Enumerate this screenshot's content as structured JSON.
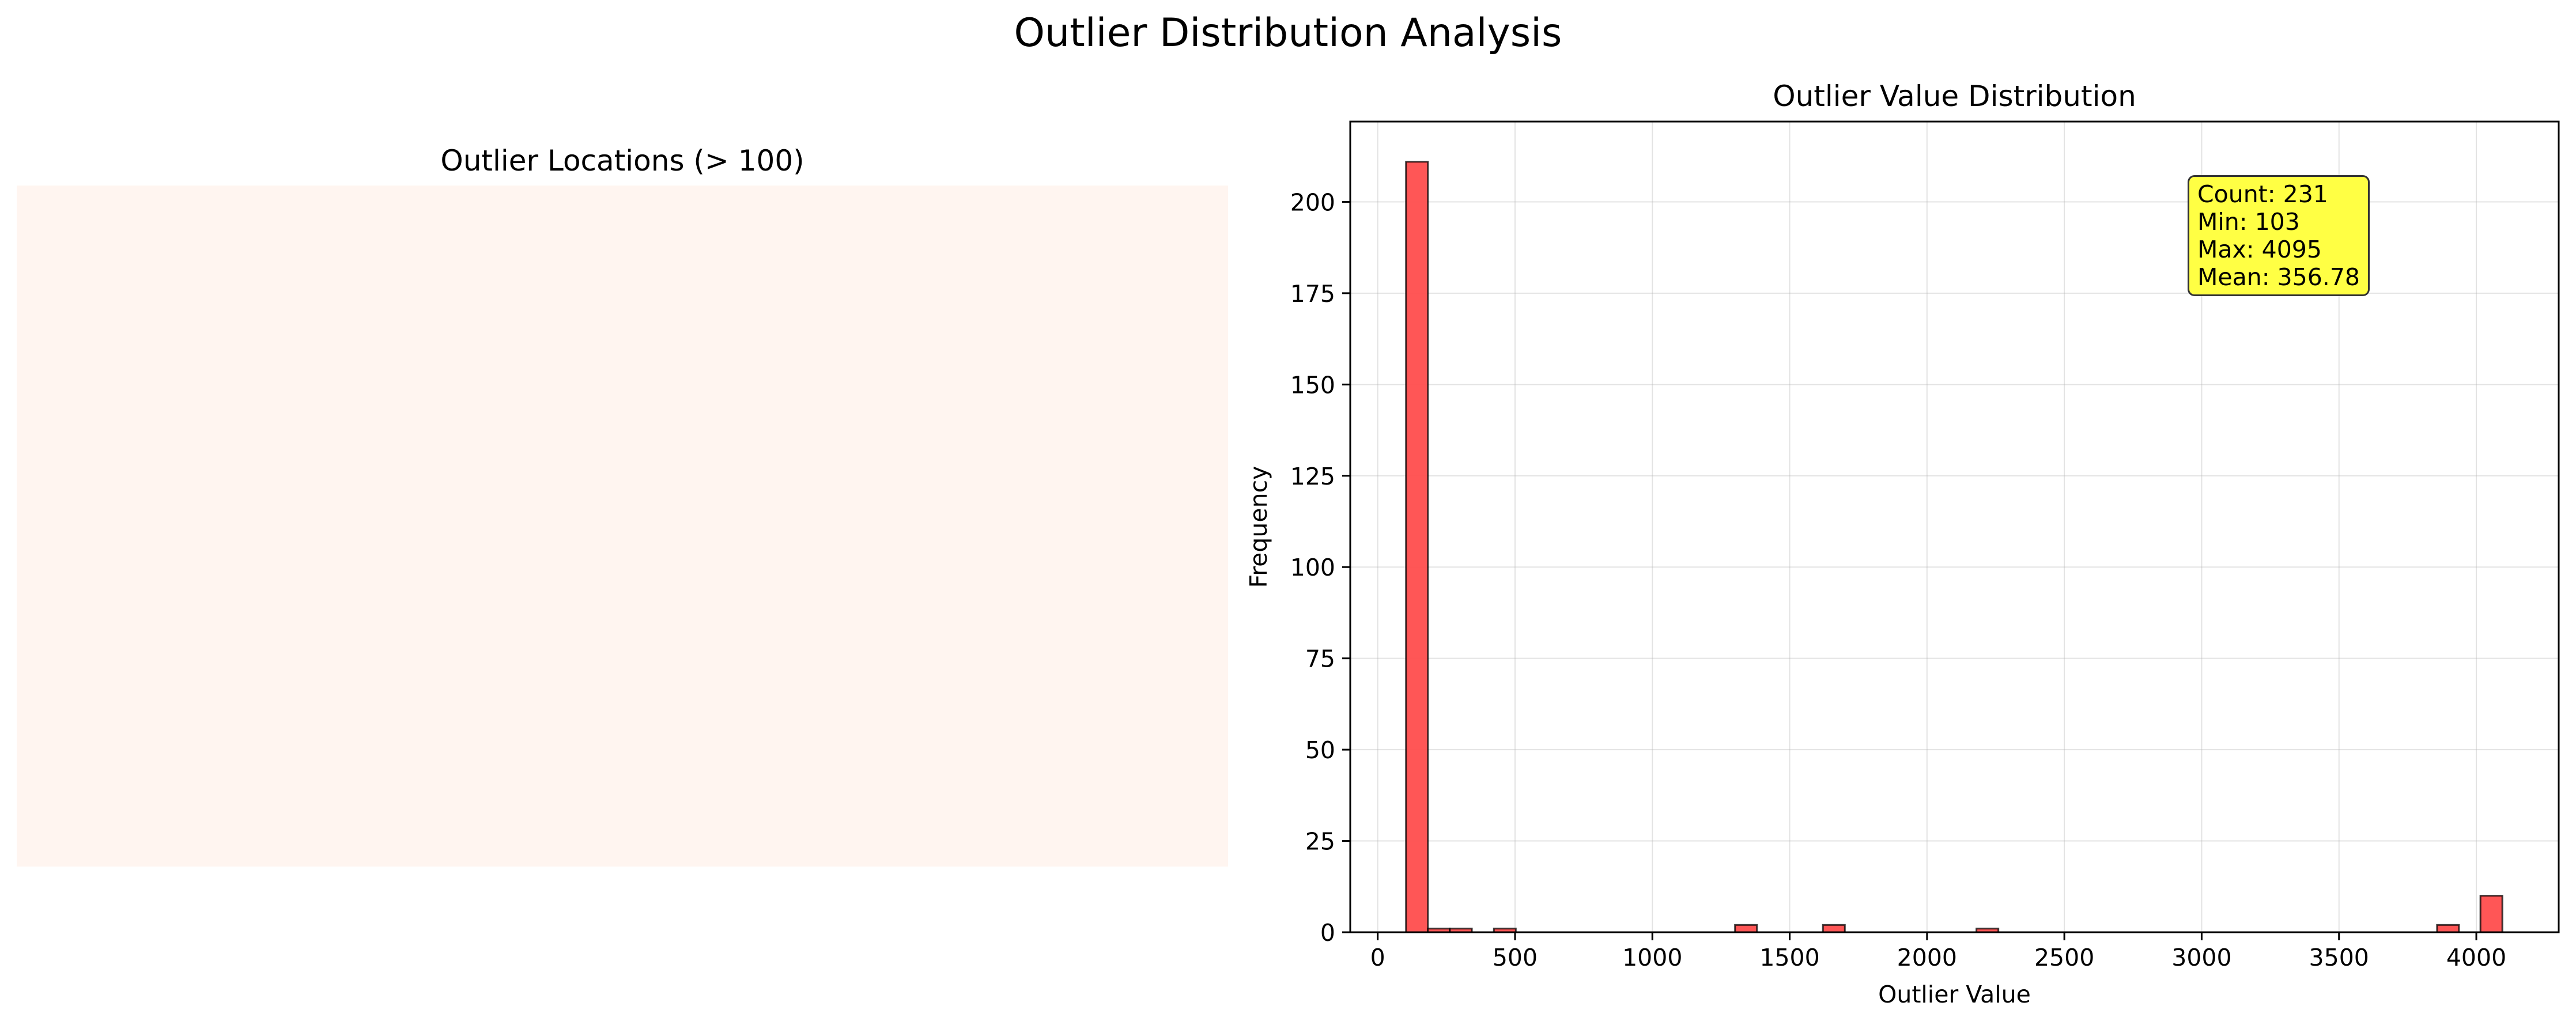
{
  "suptitle": "Outlier Distribution Analysis",
  "left_panel": {
    "title": "Outlier Locations (> 100)",
    "fill_color": "#fff5f0"
  },
  "chart_data": {
    "type": "bar",
    "title": "Outlier Value Distribution",
    "xlabel": "Outlier Value",
    "ylabel": "Frequency",
    "xlim": [
      -100,
      4300
    ],
    "ylim": [
      0,
      222
    ],
    "xticks": [
      0,
      500,
      1000,
      1500,
      2000,
      2500,
      3000,
      3500,
      4000
    ],
    "yticks": [
      0,
      25,
      50,
      75,
      100,
      125,
      150,
      175,
      200
    ],
    "grid": true,
    "bar_color": "#ff4d4d",
    "edge_color": "#000000",
    "bin_width": 79.84,
    "bins": [
      {
        "start": 103,
        "count": 211
      },
      {
        "start": 183,
        "count": 1
      },
      {
        "start": 263,
        "count": 1
      },
      {
        "start": 423,
        "count": 1
      },
      {
        "start": 1301,
        "count": 2
      },
      {
        "start": 1621,
        "count": 2
      },
      {
        "start": 2180,
        "count": 1
      },
      {
        "start": 3857,
        "count": 2
      },
      {
        "start": 4015,
        "count": 10
      }
    ],
    "annotation": {
      "lines": [
        "Count: 231",
        "Min: 103",
        "Max: 4095",
        "Mean: 356.78"
      ],
      "background": "#ffff44",
      "placement": "top-right"
    }
  }
}
